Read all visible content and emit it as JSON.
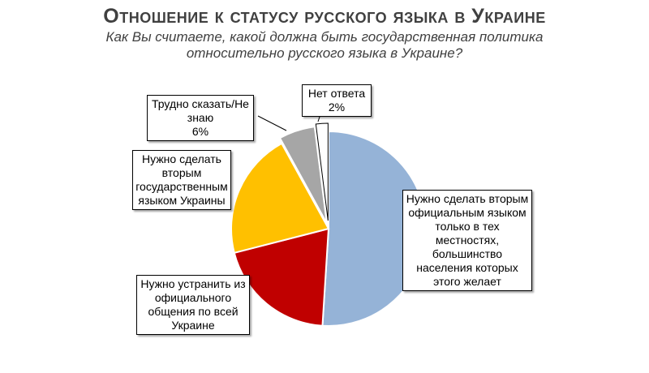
{
  "title": "Отношение к статусу русского языка в Украине",
  "subtitle": "Как Вы считаете, какой должна быть государственная политика относительно русского языка в Украине?",
  "chart_data": {
    "type": "pie",
    "slices": [
      {
        "label": "Нужно сделать вторым официальным языком только в тех местностях, большинство населения которых этого желает",
        "value": 51,
        "color": "#95b3d7"
      },
      {
        "label": "Нужно устранить из официального общения по всей Украине",
        "value": 20,
        "color": "#c00000"
      },
      {
        "label": "Нужно сделать вторым государственным языком Украины",
        "value": 21,
        "color": "#ffc000"
      },
      {
        "label": "Трудно сказать/Не знаю",
        "value": 6,
        "value_label": "6%",
        "color": "#a6a6a6"
      },
      {
        "label": "Нет ответа",
        "value": 2,
        "value_label": "2%",
        "color": "#ffffff"
      }
    ]
  }
}
